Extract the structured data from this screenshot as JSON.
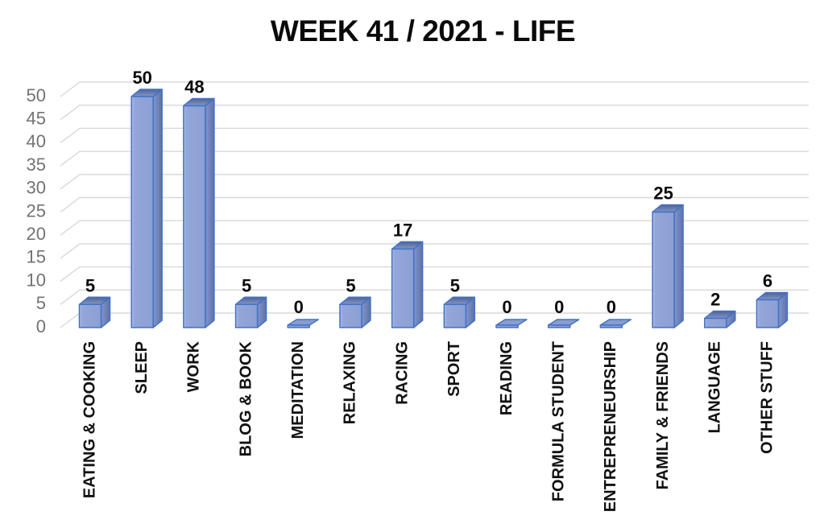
{
  "chart_data": {
    "type": "bar",
    "style": "3d-column",
    "title": "WEEK 41 / 2021 - LIFE",
    "categories": [
      "EATING & COOKING",
      "SLEEP",
      "WORK",
      "BLOG & BOOK",
      "MEDITATION",
      "RELAXING",
      "RACING",
      "SPORT",
      "READING",
      "FORMULA STUDENT",
      "ENTREPRENEURSHIP",
      "FAMILY & FRIENDS",
      "LANGUAGE",
      "OTHER STUFF"
    ],
    "values": [
      5,
      50,
      48,
      5,
      0,
      5,
      17,
      5,
      0,
      0,
      0,
      25,
      2,
      6
    ],
    "data_labels": [
      "5",
      "50",
      "48",
      "5",
      "0",
      "5",
      "17",
      "5",
      "0",
      "0",
      "0",
      "25",
      "2",
      "6"
    ],
    "xlabel": "",
    "ylabel": "",
    "ylim": [
      0,
      50
    ],
    "ytick_step": 5,
    "ytick_labels": [
      "0",
      "5",
      "10",
      "15",
      "20",
      "25",
      "30",
      "35",
      "40",
      "45",
      "50"
    ],
    "grid": "horizontal",
    "legend": "none",
    "colors": {
      "background": "#FFFFFF",
      "bar_front_light": "#AEBDE8",
      "bar_front": "#92A6DA",
      "bar_front_deep": "#8CA0D5",
      "bar_side_light": "#8396CB",
      "bar_side_dark": "#5E71A9",
      "bar_top_light": "#8497CA",
      "bar_top_dark": "#4F6196",
      "bar_border": "#4472C4",
      "slab_fill": "#8A9CCF",
      "gridline": "#D8D8D8",
      "tick_label": "#737373",
      "data_label": "#0a0a0a",
      "category_label": "#111111",
      "title_color": "#0a0a0a"
    }
  }
}
